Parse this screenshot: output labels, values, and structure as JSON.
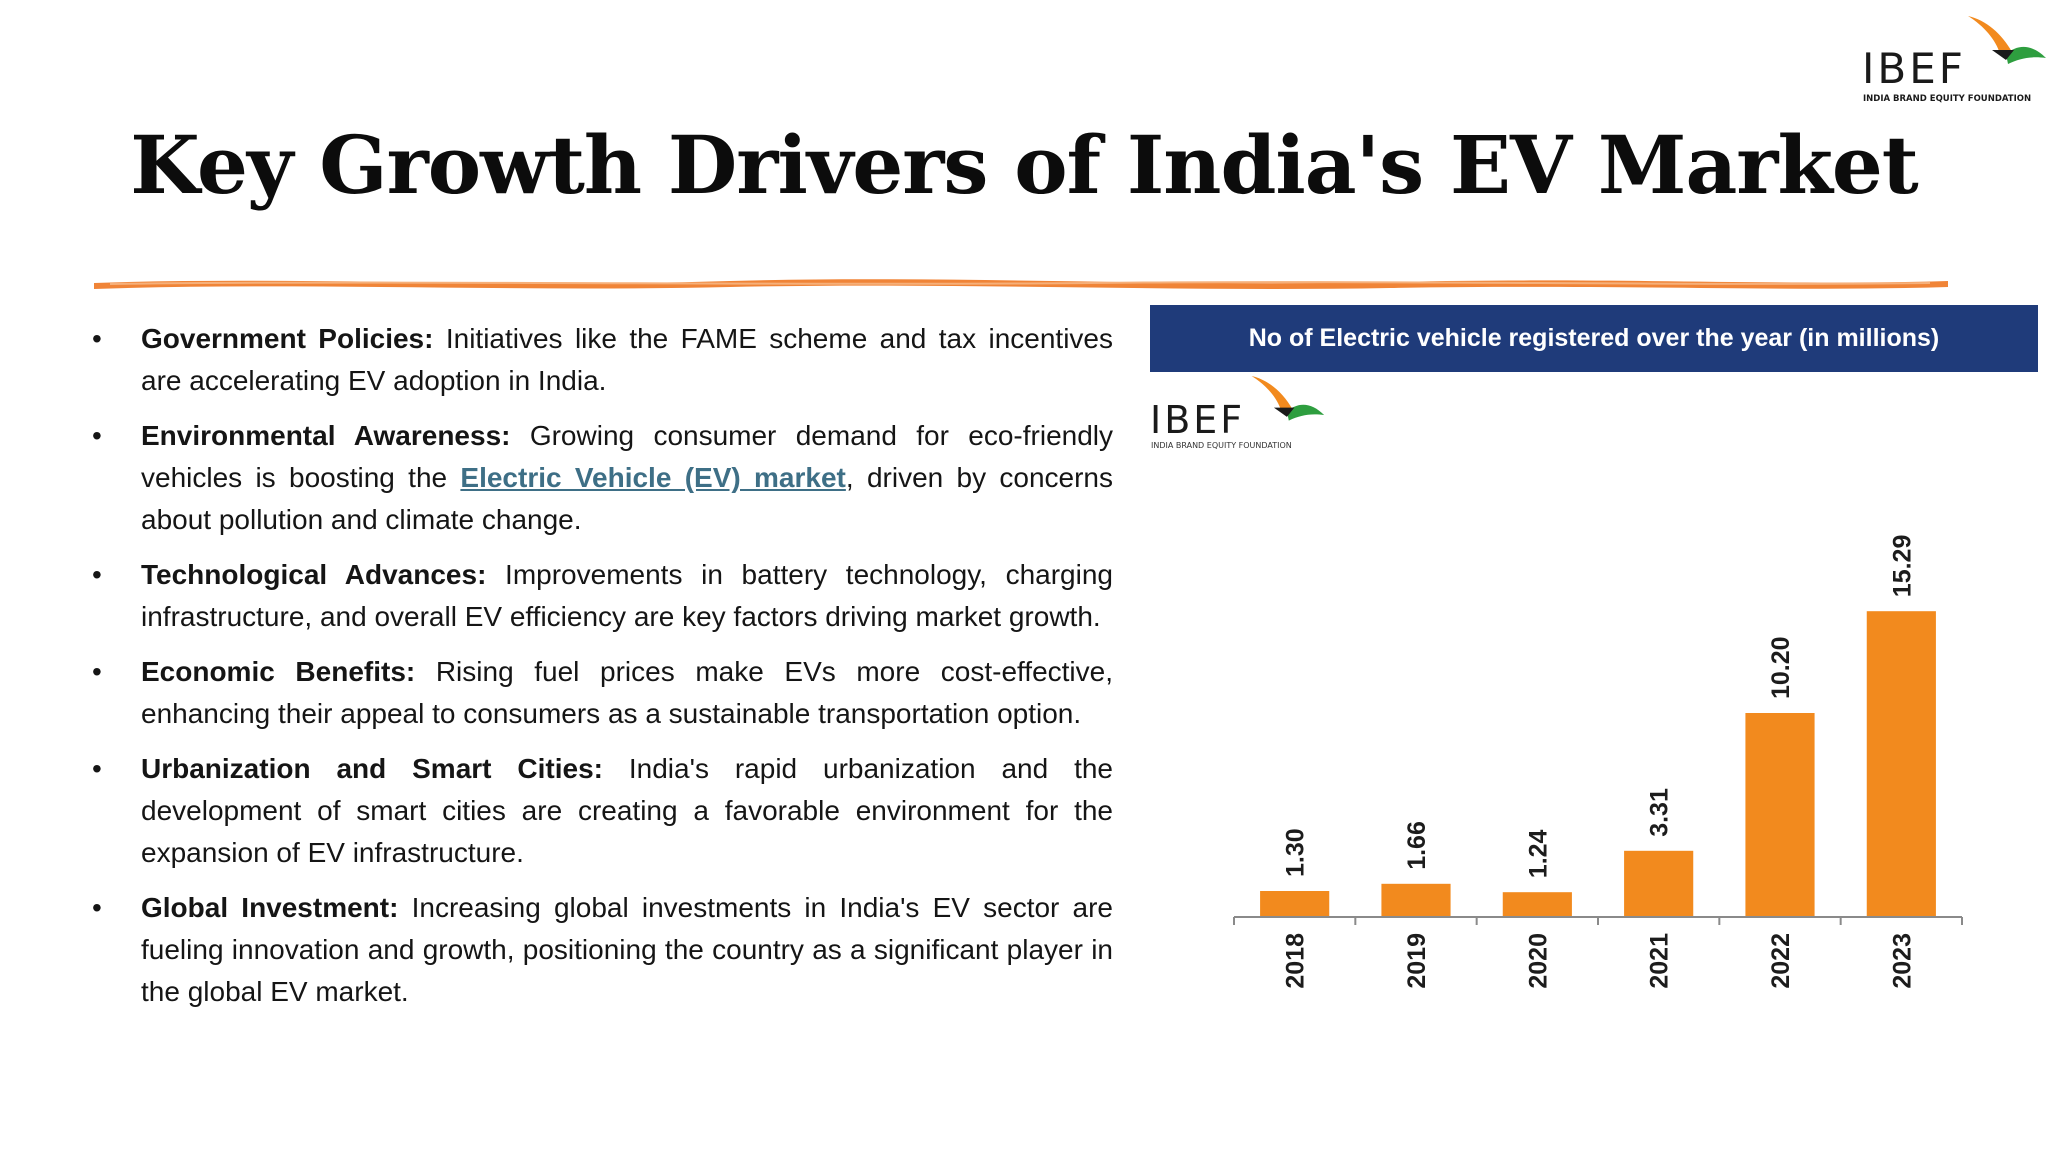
{
  "logo": {
    "word": "IBEF",
    "tagline": "INDIA BRAND EQUITY FOUNDATION",
    "colors": {
      "orange": "#f28a1e",
      "green": "#2e9e3f"
    }
  },
  "title": "Key Growth Drivers of India's EV Market",
  "bullets": [
    {
      "head": "Government Policies:",
      "text": " Initiatives like the FAME scheme and tax incentives are accelerating EV adoption in India."
    },
    {
      "head": "Environmental Awareness:",
      "text_before": " Growing consumer demand for eco-friendly vehicles is boosting the ",
      "link": "Electric Vehicle (EV) market",
      "text_after": ", driven by concerns about pollution and climate change."
    },
    {
      "head": "Technological Advances:",
      "text": " Improvements in battery technology, charging infrastructure, and overall EV efficiency are key factors driving market growth."
    },
    {
      "head": "Economic Benefits:",
      "text": " Rising fuel prices make EVs more cost-effective, enhancing their appeal to consumers as a sustainable transportation option."
    },
    {
      "head": "Urbanization and Smart Cities:",
      "text": " India's rapid urbanization and the development of smart cities are creating a favorable environment for the expansion of EV infrastructure."
    },
    {
      "head": "Global Investment:",
      "text": " Increasing global investments in India's EV sector are fueling innovation and growth, positioning the country as a significant player in the global EV market."
    }
  ],
  "chart_data": {
    "type": "bar",
    "title": "No of Electric vehicle registered over the year (in millions)",
    "categories": [
      "2018",
      "2019",
      "2020",
      "2021",
      "2022",
      "2023"
    ],
    "values": [
      1.3,
      1.66,
      1.24,
      3.31,
      10.2,
      15.29
    ],
    "value_labels": [
      "1.30",
      "1.66",
      "1.24",
      "3.31",
      "10.20",
      "15.29"
    ],
    "ylim": [
      0,
      20
    ],
    "grid": false,
    "legend": "none",
    "bar_color": "#f28a1e",
    "header_color": "#1f3b7a"
  }
}
